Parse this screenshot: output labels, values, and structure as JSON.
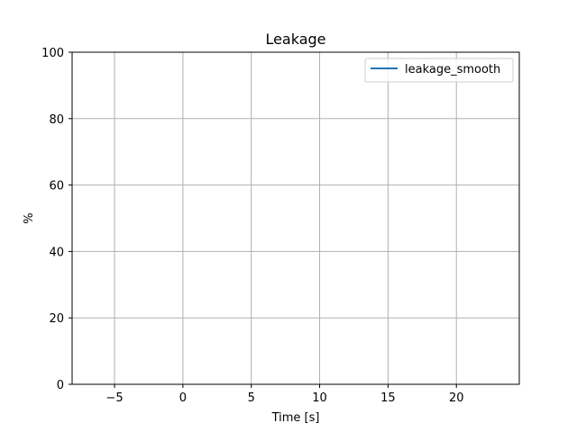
{
  "chart_data": {
    "type": "line",
    "title": "Leakage",
    "xlabel": "Time [s]",
    "ylabel": "%",
    "xlim": [
      -8.1,
      24.6
    ],
    "ylim": [
      0,
      100
    ],
    "xticks": [
      -5,
      0,
      5,
      10,
      15,
      20
    ],
    "yticks": [
      0,
      20,
      40,
      60,
      80,
      100
    ],
    "xtick_labels": [
      "−5",
      "0",
      "5",
      "10",
      "15",
      "20"
    ],
    "ytick_labels": [
      "0",
      "20",
      "40",
      "60",
      "80",
      "100"
    ],
    "grid": true,
    "legend": "top-right",
    "series": [
      {
        "name": "leakage_smooth",
        "color": "#1f77b4",
        "x": [],
        "y": []
      }
    ]
  }
}
